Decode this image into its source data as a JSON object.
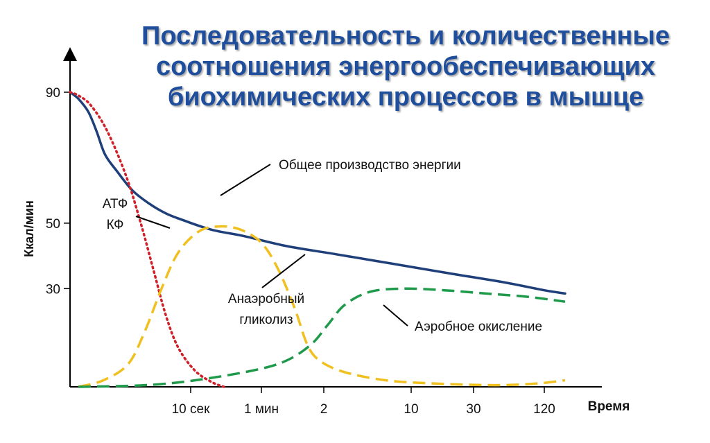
{
  "title_lines": [
    "Последовательность и количественные",
    "соотношения энергообеспечивающих",
    "биохимических процессов в мышце"
  ],
  "chart_data": {
    "type": "line",
    "ylabel": "Ккал/мин",
    "xlabel": "Время",
    "y_ticks": [
      90,
      50,
      30
    ],
    "ylim": [
      0,
      90
    ],
    "x_ticks": [
      "10 сек",
      "1 мин",
      "2",
      "10",
      "30",
      "120"
    ],
    "x_scale": "nonlinear (time)",
    "series": [
      {
        "name": "Общее производство энергии",
        "color": "#1f3f7a",
        "style": "solid",
        "points": [
          [
            0,
            90
          ],
          [
            0.1,
            88
          ],
          [
            0.22,
            84
          ],
          [
            0.32,
            78
          ],
          [
            0.42,
            71
          ],
          [
            0.56,
            66
          ],
          [
            0.75,
            60
          ],
          [
            0.95,
            56
          ],
          [
            1.15,
            53
          ],
          [
            1.35,
            51
          ],
          [
            1.7,
            48
          ],
          [
            2.1,
            46
          ],
          [
            2.6,
            43
          ],
          [
            3.2,
            40.5
          ],
          [
            3.9,
            37.5
          ],
          [
            4.6,
            34.5
          ],
          [
            5.2,
            32
          ],
          [
            5.7,
            29.5
          ],
          [
            5.95,
            28.5
          ]
        ]
      },
      {
        "name": "АТФ\nКФ",
        "label_lines": [
          "АТФ",
          "КФ"
        ],
        "color": "#d0202a",
        "style": "dotted",
        "points": [
          [
            0,
            90
          ],
          [
            0.1,
            89
          ],
          [
            0.25,
            86
          ],
          [
            0.45,
            78
          ],
          [
            0.68,
            64
          ],
          [
            0.85,
            50
          ],
          [
            1.0,
            36
          ],
          [
            1.15,
            22
          ],
          [
            1.3,
            12
          ],
          [
            1.5,
            5
          ],
          [
            1.7,
            1.5
          ],
          [
            1.85,
            0
          ]
        ]
      },
      {
        "name": "Анаэробный\nгликолиз",
        "label_lines": [
          "Анаэробный",
          "гликолиз"
        ],
        "color": "#f0c020",
        "style": "dashed",
        "points": [
          [
            0.1,
            0
          ],
          [
            0.4,
            2
          ],
          [
            0.7,
            7
          ],
          [
            0.9,
            17
          ],
          [
            1.1,
            30
          ],
          [
            1.3,
            41
          ],
          [
            1.55,
            47.5
          ],
          [
            1.8,
            49
          ],
          [
            2.05,
            48
          ],
          [
            2.3,
            44
          ],
          [
            2.5,
            36
          ],
          [
            2.7,
            24
          ],
          [
            2.85,
            13
          ],
          [
            3.0,
            8
          ],
          [
            3.3,
            4.5
          ],
          [
            3.8,
            2
          ],
          [
            4.4,
            1
          ],
          [
            5.1,
            0.5
          ],
          [
            5.6,
            1
          ],
          [
            5.95,
            2
          ]
        ]
      },
      {
        "name": "Аэробное окисление",
        "color": "#1e9a4a",
        "style": "dashed",
        "points": [
          [
            0.1,
            0
          ],
          [
            0.9,
            0.5
          ],
          [
            1.5,
            2
          ],
          [
            2.2,
            5
          ],
          [
            2.6,
            8
          ],
          [
            2.9,
            13
          ],
          [
            3.1,
            19
          ],
          [
            3.3,
            25
          ],
          [
            3.6,
            29
          ],
          [
            4.0,
            30
          ],
          [
            4.5,
            29.5
          ],
          [
            5.0,
            28.5
          ],
          [
            5.5,
            27.5
          ],
          [
            5.95,
            26
          ]
        ]
      }
    ]
  }
}
